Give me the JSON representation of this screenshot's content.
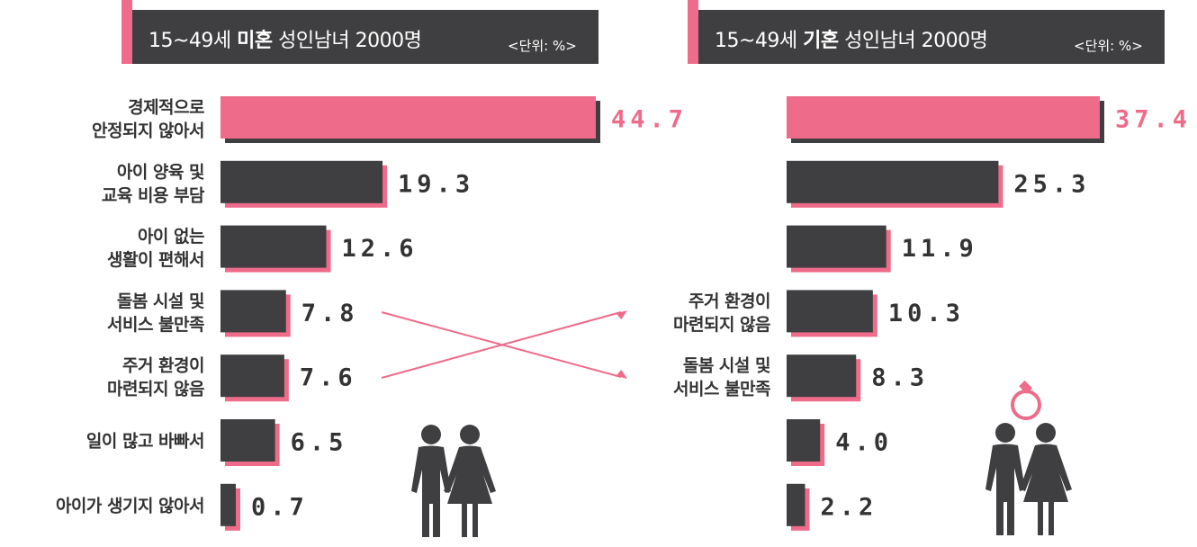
{
  "colors": {
    "accent": "#ee6b8a",
    "bar": "#3f3f41",
    "text": "#333333",
    "value_text": "#333333"
  },
  "icons": [
    "couple-icon",
    "couple-with-ring-icon",
    "ring-icon"
  ],
  "chart_data": [
    {
      "type": "bar",
      "orientation": "horizontal",
      "title_parts": [
        "15~49세 ",
        "미혼",
        " 성인남녀 2000명"
      ],
      "unit": "<단위: %>",
      "categories": [
        [
          "경제적으로",
          "안정되지 않아서"
        ],
        [
          "아이 양육 및",
          "교육 비용 부담"
        ],
        [
          "아이 없는",
          "생활이 편해서"
        ],
        [
          "돌봄 시설 및",
          "서비스 불만족"
        ],
        [
          "주거 환경이",
          "마련되지 않음"
        ],
        [
          "일이 많고 바빠서"
        ],
        [
          "아이가 생기지 않아서"
        ]
      ],
      "values": [
        44.7,
        19.3,
        12.6,
        7.8,
        7.6,
        6.5,
        0.7
      ],
      "value_labels": [
        "44.7",
        "19.3",
        "12.6",
        "7.8",
        "7.6",
        "6.5",
        "0.7"
      ],
      "highlight_index": 0,
      "xlim": [
        0,
        47
      ]
    },
    {
      "type": "bar",
      "orientation": "horizontal",
      "title_parts": [
        "15~49세 ",
        "기혼",
        " 성인남녀 2000명"
      ],
      "unit": "<단위: %>",
      "categories": [
        [
          "경제적으로",
          "안정되지 않아서"
        ],
        [
          "아이 양육 및",
          "교육 비용 부담"
        ],
        [
          "아이 없는",
          "생활이 편해서"
        ],
        [
          "주거 환경이",
          "마련되지 않음"
        ],
        [
          "돌봄 시설 및",
          "서비스 불만족"
        ],
        [
          "일이 많고 바빠서"
        ],
        [
          "아이가 생기지 않아서"
        ]
      ],
      "visible_category_indexes": [
        3,
        4
      ],
      "values": [
        37.4,
        25.3,
        11.9,
        10.3,
        8.3,
        4.0,
        2.2
      ],
      "value_labels": [
        "37.4",
        "25.3",
        "11.9",
        "10.3",
        "8.3",
        "4.0",
        "2.2"
      ],
      "highlight_index": 0,
      "xlim": [
        0,
        39
      ]
    }
  ],
  "annotations": [
    {
      "type": "arrow",
      "from": "미혼: 돌봄 시설 및 서비스 불만족",
      "to": "기혼: 돌봄 시설 및 서비스 불만족"
    },
    {
      "type": "arrow",
      "from": "미혼: 주거 환경이 마련되지 않음",
      "to": "기혼: 주거 환경이 마련되지 않음"
    }
  ]
}
